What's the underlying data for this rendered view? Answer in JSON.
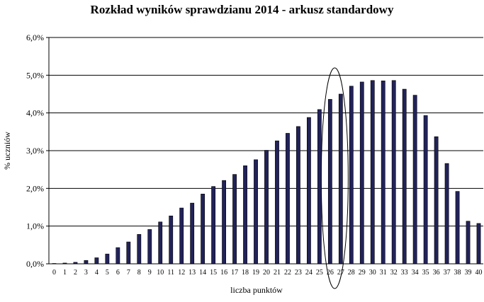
{
  "chart_data": {
    "type": "bar",
    "title": "Rozkład wyników sprawdzianu 2014 - arkusz standardowy",
    "xlabel": "liczba punktów",
    "ylabel": "% uczniów",
    "categories": [
      "0",
      "1",
      "2",
      "3",
      "4",
      "5",
      "6",
      "7",
      "8",
      "9",
      "10",
      "11",
      "12",
      "13",
      "14",
      "15",
      "16",
      "17",
      "18",
      "19",
      "20",
      "21",
      "22",
      "23",
      "24",
      "25",
      "26",
      "27",
      "28",
      "29",
      "30",
      "31",
      "32",
      "33",
      "34",
      "35",
      "36",
      "37",
      "38",
      "39",
      "40"
    ],
    "values": [
      0.01,
      0.02,
      0.04,
      0.09,
      0.16,
      0.26,
      0.43,
      0.58,
      0.78,
      0.91,
      1.11,
      1.27,
      1.48,
      1.61,
      1.85,
      2.05,
      2.21,
      2.37,
      2.6,
      2.76,
      3.01,
      3.26,
      3.46,
      3.64,
      3.88,
      4.09,
      4.36,
      4.5,
      4.71,
      4.82,
      4.86,
      4.85,
      4.86,
      4.63,
      4.47,
      3.93,
      3.37,
      2.66,
      1.92,
      1.13,
      1.07
    ],
    "ylim": [
      0,
      6
    ],
    "y_ticks": [
      "0,0%",
      "1,0%",
      "2,0%",
      "3,0%",
      "4,0%",
      "5,0%",
      "6,0%"
    ],
    "grid": true,
    "legend": "none",
    "bar_color": "#22225a",
    "annotation": "ellipse around 26 and 27 points"
  }
}
